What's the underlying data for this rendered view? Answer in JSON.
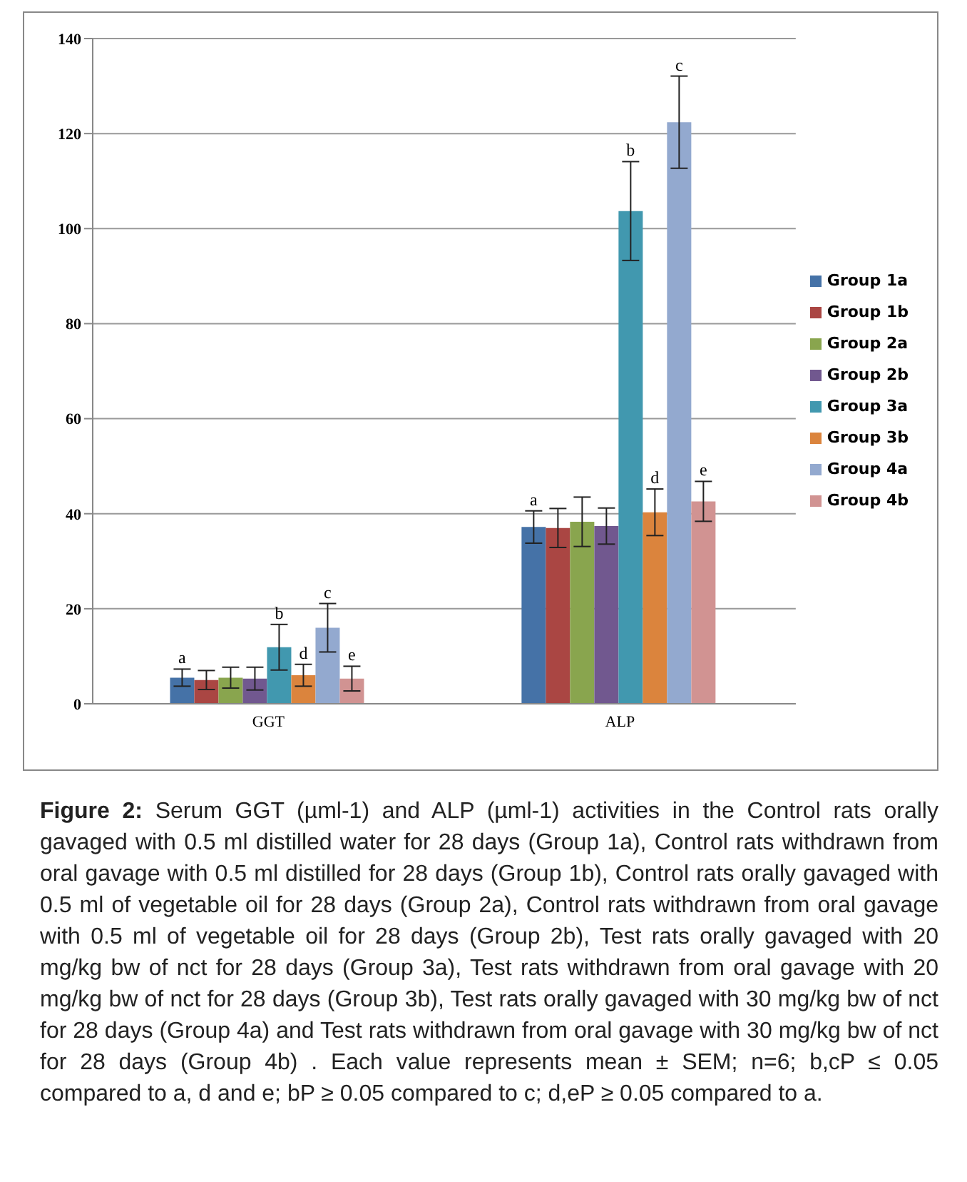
{
  "chart_data": {
    "type": "bar",
    "categories": [
      "GGT",
      "ALP"
    ],
    "series": [
      {
        "name": "Group 1a",
        "color": "#4572a7",
        "values": [
          5.5,
          37.2
        ],
        "errors": [
          1.8,
          3.4
        ],
        "value_labels": [
          "a",
          "a"
        ]
      },
      {
        "name": "Group 1b",
        "color": "#aa4643",
        "values": [
          5.0,
          37.0
        ],
        "errors": [
          2.0,
          4.1
        ]
      },
      {
        "name": "Group 2a",
        "color": "#89a54e",
        "values": [
          5.5,
          38.3
        ],
        "errors": [
          2.2,
          5.2
        ]
      },
      {
        "name": "Group 2b",
        "color": "#71588f",
        "values": [
          5.3,
          37.4
        ],
        "errors": [
          2.4,
          3.8
        ]
      },
      {
        "name": "Group 3a",
        "color": "#4198af",
        "values": [
          11.9,
          103.7
        ],
        "errors": [
          4.8,
          10.4
        ],
        "value_labels": [
          "b",
          "b"
        ]
      },
      {
        "name": "Group 3b",
        "color": "#db843d",
        "values": [
          6.0,
          40.3
        ],
        "errors": [
          2.3,
          4.9
        ],
        "value_labels": [
          "d",
          "d"
        ]
      },
      {
        "name": "Group 4a",
        "color": "#93a9cf",
        "values": [
          16.0,
          122.4
        ],
        "errors": [
          5.1,
          9.7
        ],
        "value_labels": [
          "c",
          "c"
        ]
      },
      {
        "name": "Group 4b",
        "color": "#d19392",
        "values": [
          5.3,
          42.6
        ],
        "errors": [
          2.6,
          4.2
        ],
        "value_labels": [
          "e",
          "e"
        ]
      }
    ],
    "ylim": [
      0,
      140
    ],
    "yticks": [
      0,
      20,
      40,
      60,
      80,
      100,
      120,
      140
    ],
    "grid": "y",
    "legend": "right",
    "annotations": [
      "Figure 2:",
      "Serum GGT (µml-1) and ALP (µml-1) activities in the Control rats orally gavaged with 0.5 ml distilled water for 28 days (Group 1a), Control rats withdrawn from oral gavage with 0.5 ml distilled for 28 days (Group 1b), Control rats orally gavaged with 0.5 ml of vegetable oil for 28 days (Group 2a), Control rats withdrawn from oral gavage with 0.5 ml of vegetable oil for 28 days (Group 2b), Test rats orally gavaged with 20 mg/kg bw of nct for 28 days (Group 3a), Test rats withdrawn from oral gavage with 20 mg/kg bw of nct for 28 days (Group 3b), Test rats orally gavaged with 30 mg/kg bw of nct for 28 days (Group 4a) and Test rats withdrawn from oral gavage with 30 mg/kg bw of nct for 28 days (Group 4b) . Each value represents mean ± SEM; n=6; b,cP ≤ 0.05 compared to a, d and e; bP ≥ 0.05 compared to c; d,eP ≥ 0.05 compared to a."
    ]
  }
}
